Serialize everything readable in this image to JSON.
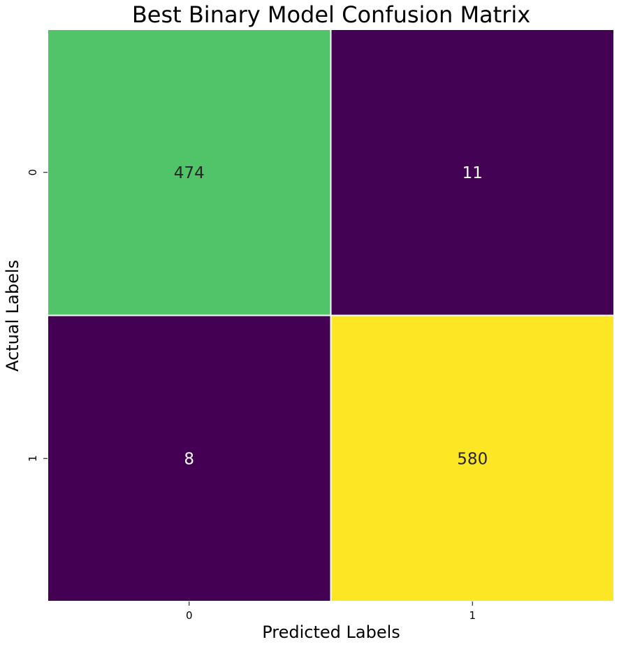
{
  "chart_data": {
    "type": "heatmap",
    "title": "Best Binary Model Confusion Matrix",
    "xlabel": "Predicted Labels",
    "ylabel": "Actual Labels",
    "x_categories": [
      "0",
      "1"
    ],
    "y_categories": [
      "0",
      "1"
    ],
    "values": [
      [
        474,
        11
      ],
      [
        8,
        580
      ]
    ],
    "colormap": "viridis",
    "color_range": [
      8,
      580
    ],
    "colorbar": false,
    "grid": false,
    "cell_separator_color": "#ffffff",
    "colors": {
      "low": "#440154",
      "mid_high": "#84d44b",
      "high": "#fde725",
      "dark_text": "#262626",
      "light_text": "#ffffff"
    }
  }
}
